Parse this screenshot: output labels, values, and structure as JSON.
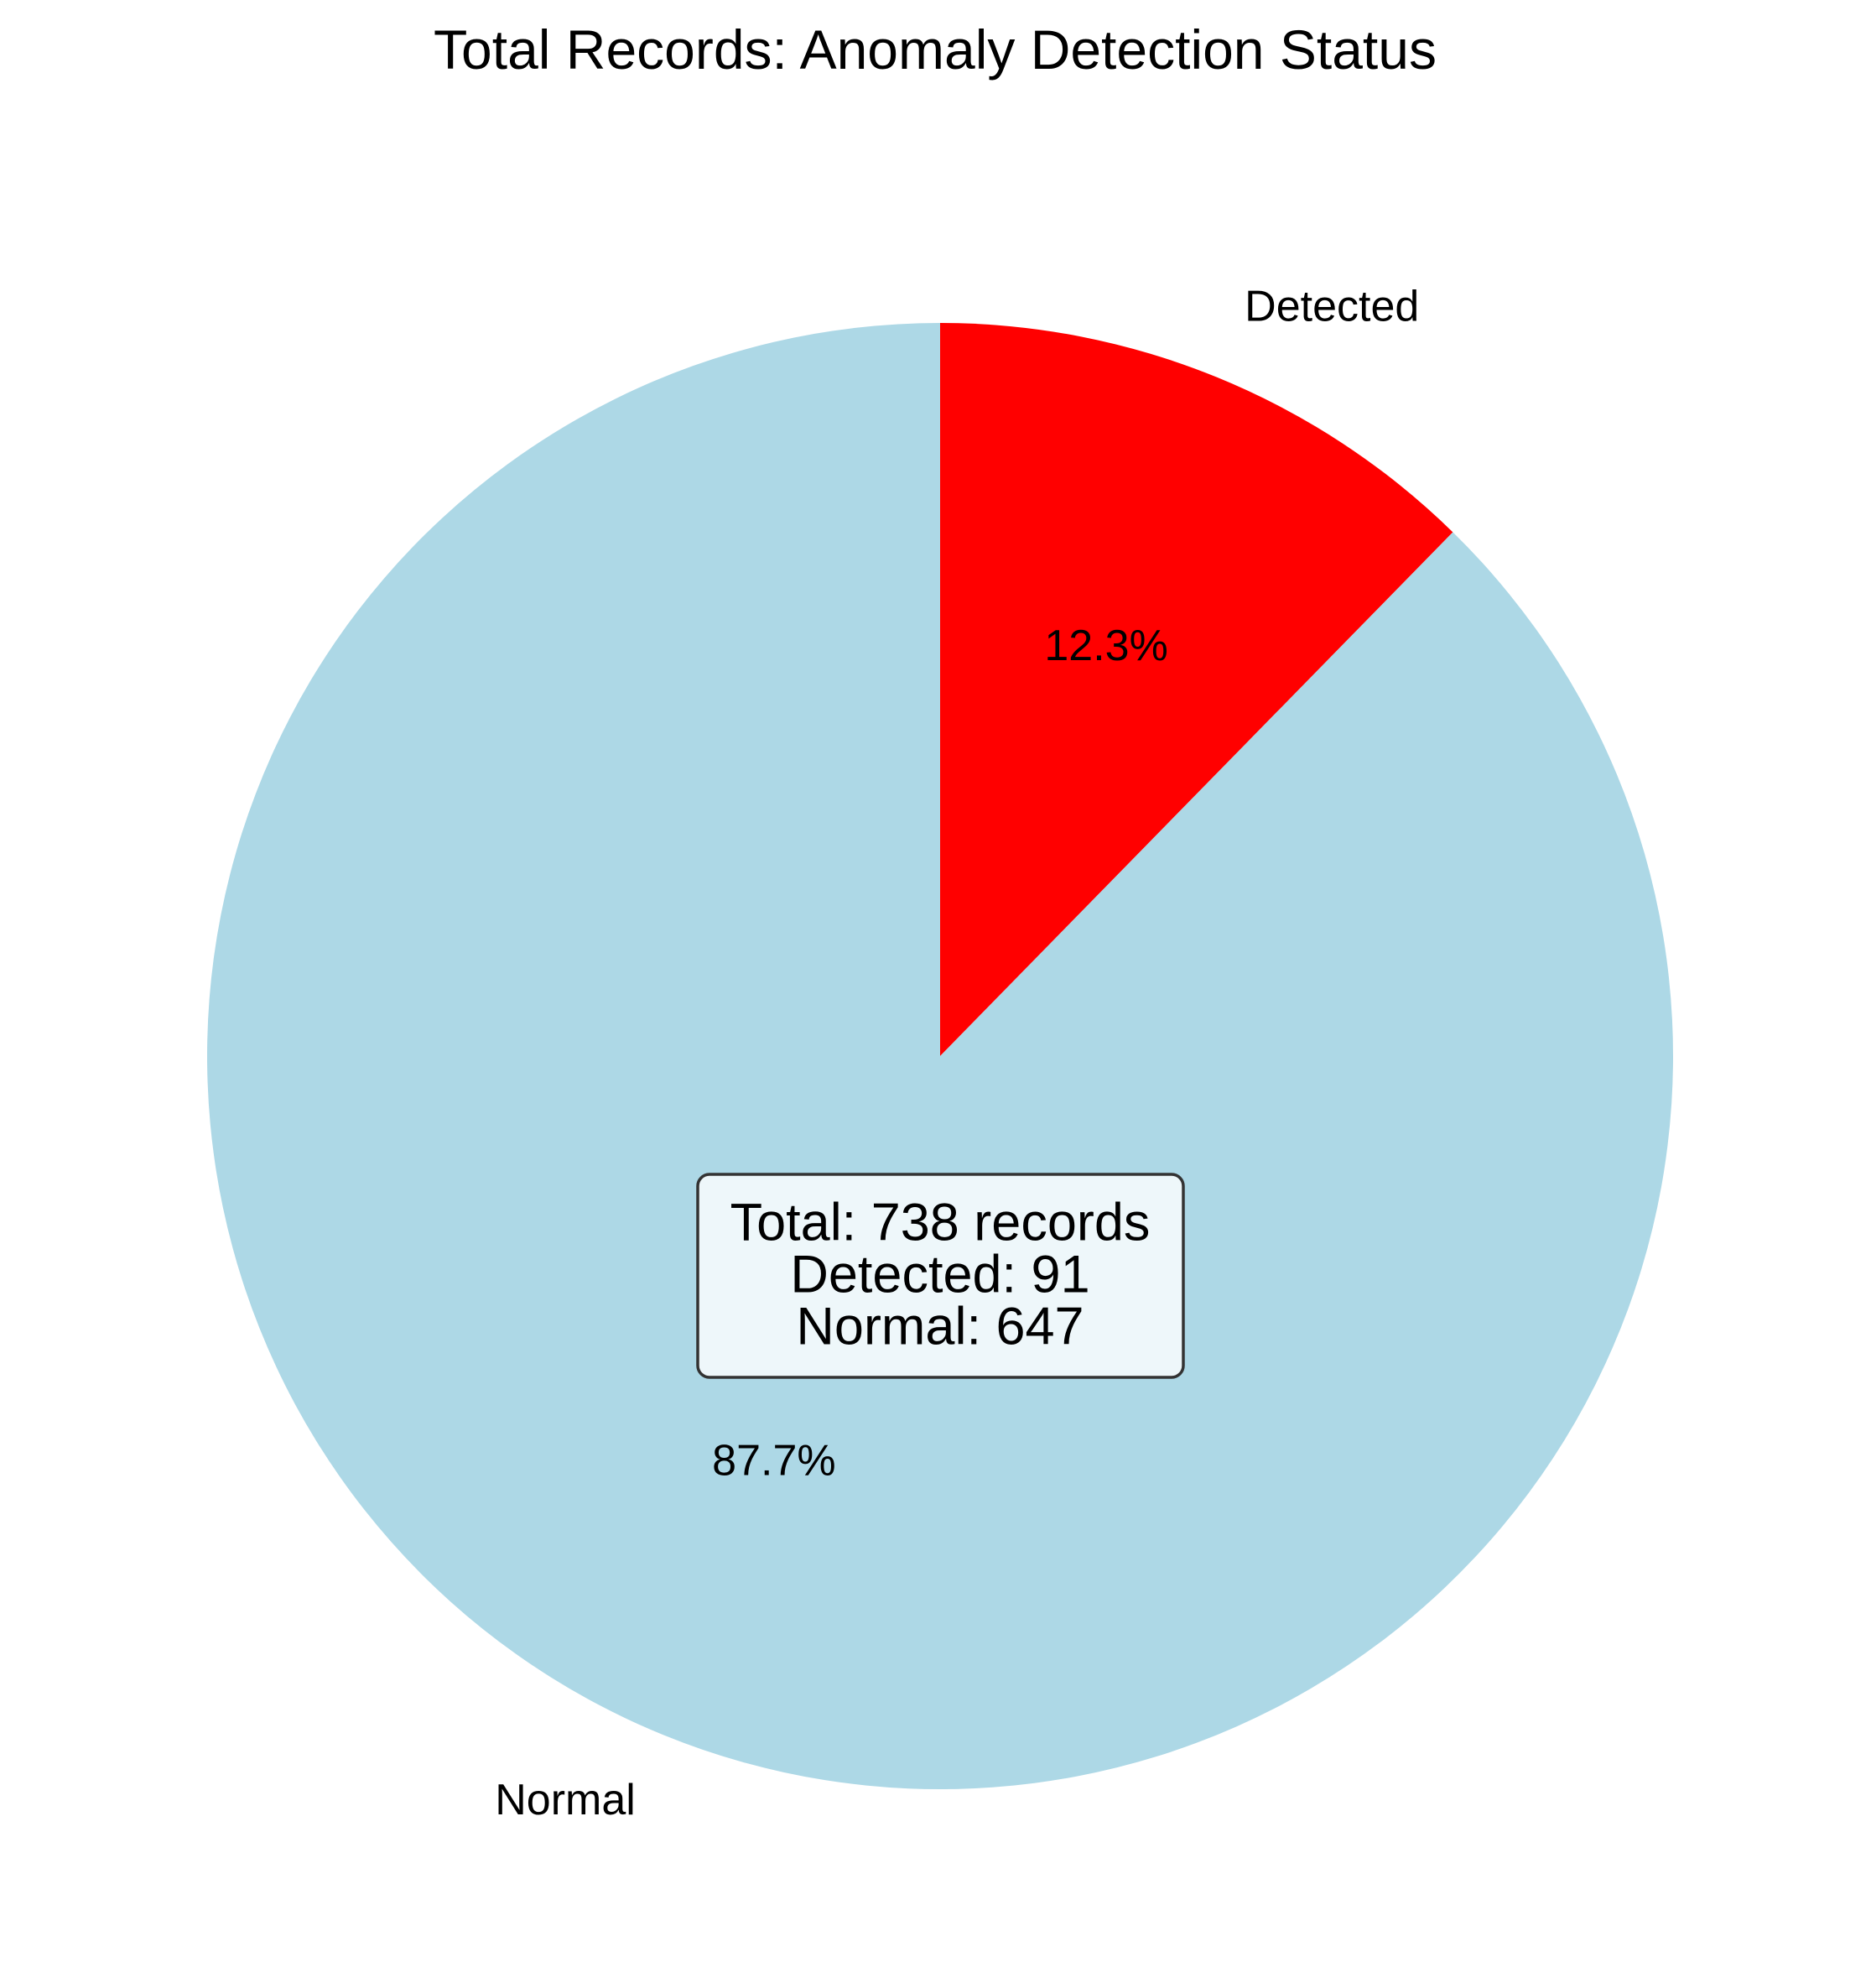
{
  "chart_data": {
    "type": "pie",
    "title": "Total Records: Anomaly Detection Status",
    "start_angle_deg": 90,
    "direction": "clockwise",
    "slices": [
      {
        "name": "Detected",
        "label": "Detected",
        "value": 91,
        "percent_label": "12.3%",
        "color": "#ff0000"
      },
      {
        "name": "Normal",
        "label": "Normal",
        "value": 647,
        "percent_label": "87.7%",
        "color": "#add8e6"
      }
    ],
    "summary": {
      "line1": "Total: 738 records",
      "line2": "Detected: 91",
      "line3": "Normal: 647",
      "background": "#eef7fa",
      "border": "#333333"
    }
  }
}
